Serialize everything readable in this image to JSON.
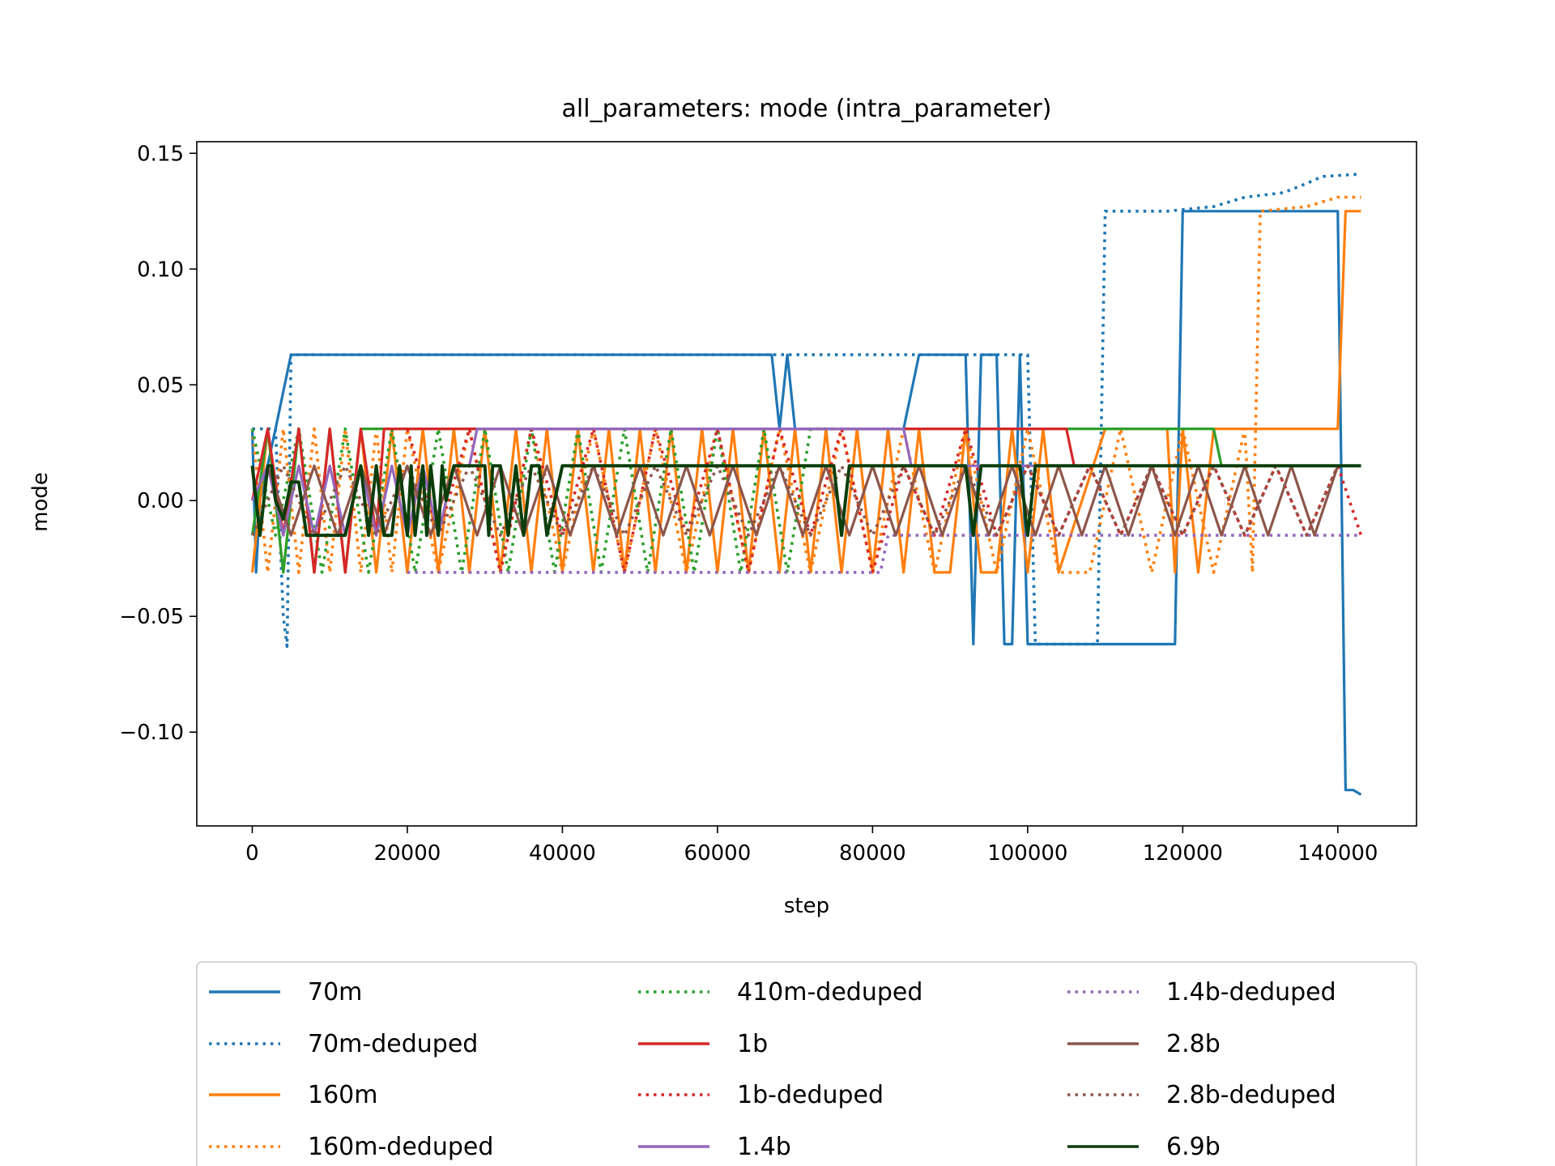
{
  "chart_data": {
    "type": "line",
    "title": "all_parameters: mode (intra_parameter)",
    "xlabel": "step",
    "ylabel": "mode",
    "xlim": [
      -7150,
      150150
    ],
    "ylim": [
      -0.1405,
      0.155
    ],
    "x_ticks": [
      0,
      20000,
      40000,
      60000,
      80000,
      100000,
      120000,
      140000
    ],
    "x_tick_labels": [
      "0",
      "20000",
      "40000",
      "60000",
      "80000",
      "100000",
      "120000",
      "140000"
    ],
    "y_ticks": [
      -0.1,
      -0.05,
      0.0,
      0.05,
      0.1,
      0.15
    ],
    "y_tick_labels": [
      "−0.10",
      "−0.05",
      "0.00",
      "0.05",
      "0.10",
      "0.15"
    ],
    "grid": false,
    "legend": {
      "placement": "below plot, 3 columns",
      "entries": [
        "70m",
        "70m-deduped",
        "160m",
        "160m-deduped",
        "410m-deduped",
        "1b",
        "1b-deduped",
        "1.4b",
        "1.4b-deduped",
        "2.8b",
        "2.8b-deduped",
        "6.9b"
      ]
    },
    "series": [
      {
        "name": "70m",
        "color": "#1f77b4",
        "style": "solid",
        "x": [
          0,
          500,
          1000,
          3000,
          5000,
          30000,
          60000,
          67000,
          68000,
          69000,
          70000,
          71000,
          84000,
          86000,
          92000,
          93000,
          94000,
          96000,
          97000,
          98000,
          99000,
          100000,
          119000,
          120000,
          140000,
          141000,
          142000,
          143000
        ],
        "y": [
          0.031,
          -0.031,
          0.0,
          0.031,
          0.063,
          0.063,
          0.063,
          0.063,
          0.031,
          0.063,
          0.031,
          0.031,
          0.031,
          0.063,
          0.063,
          -0.062,
          0.063,
          0.063,
          -0.062,
          -0.062,
          0.063,
          -0.062,
          -0.062,
          0.125,
          0.125,
          -0.125,
          -0.125,
          -0.127
        ]
      },
      {
        "name": "70m-deduped",
        "color": "#1f77b4",
        "style": "dotted",
        "x": [
          0,
          3000,
          4000,
          4500,
          5000,
          6000,
          30000,
          60000,
          100000,
          101000,
          102000,
          103000,
          108000,
          109000,
          110000,
          118000,
          124000,
          128000,
          133000,
          136000,
          138000,
          143000
        ],
        "y": [
          0.031,
          0.031,
          -0.05,
          -0.063,
          0.063,
          0.063,
          0.063,
          0.063,
          0.063,
          -0.062,
          -0.062,
          -0.062,
          -0.062,
          -0.062,
          0.125,
          0.125,
          0.127,
          0.131,
          0.133,
          0.137,
          0.14,
          0.141
        ]
      },
      {
        "name": "160m",
        "color": "#ff7f0e",
        "style": "solid",
        "x": [
          0,
          2000,
          4000,
          6000,
          8000,
          10000,
          12000,
          14000,
          16000,
          18000,
          20000,
          22000,
          24000,
          26000,
          28000,
          30000,
          32000,
          34000,
          36000,
          38000,
          40000,
          42000,
          44000,
          46000,
          48000,
          50000,
          52000,
          54000,
          56000,
          58000,
          60000,
          62000,
          64000,
          66000,
          68000,
          70000,
          72000,
          74000,
          76000,
          78000,
          80000,
          82000,
          84000,
          86000,
          88000,
          90000,
          92000,
          94000,
          96000,
          98000,
          100000,
          102000,
          104000,
          110000,
          118000,
          119000,
          120000,
          122000,
          124000,
          130000,
          140000,
          141000,
          143000
        ],
        "y": [
          -0.031,
          0.031,
          -0.031,
          0.031,
          -0.031,
          0.031,
          -0.031,
          0.031,
          -0.031,
          0.031,
          -0.031,
          0.031,
          -0.031,
          0.031,
          -0.031,
          0.031,
          -0.031,
          0.031,
          -0.031,
          0.031,
          -0.031,
          0.031,
          -0.031,
          0.031,
          -0.031,
          0.031,
          -0.031,
          0.031,
          -0.031,
          0.031,
          -0.031,
          0.031,
          -0.031,
          0.031,
          -0.031,
          0.031,
          -0.031,
          0.031,
          -0.031,
          0.031,
          -0.031,
          0.031,
          -0.031,
          0.031,
          -0.031,
          -0.031,
          0.031,
          -0.031,
          -0.031,
          0.031,
          -0.031,
          0.031,
          -0.031,
          0.031,
          0.031,
          -0.031,
          0.031,
          -0.031,
          0.031,
          0.031,
          0.031,
          0.125,
          0.125
        ]
      },
      {
        "name": "160m-deduped",
        "color": "#ff7f0e",
        "style": "dotted",
        "x": [
          0,
          2000,
          4000,
          6000,
          8000,
          10000,
          12000,
          14000,
          16000,
          18000,
          20000,
          24000,
          28000,
          32000,
          36000,
          40000,
          44000,
          48000,
          52000,
          56000,
          60000,
          64000,
          68000,
          72000,
          76000,
          80000,
          84000,
          88000,
          92000,
          96000,
          100000,
          104000,
          108000,
          112000,
          116000,
          120000,
          124000,
          128000,
          129000,
          130000,
          136000,
          140000,
          143000
        ],
        "y": [
          0.031,
          -0.031,
          0.031,
          -0.031,
          0.031,
          -0.031,
          0.031,
          -0.031,
          0.031,
          -0.031,
          0.031,
          -0.031,
          0.031,
          -0.031,
          0.031,
          -0.031,
          0.031,
          -0.031,
          0.031,
          -0.031,
          0.031,
          -0.031,
          0.031,
          -0.031,
          0.031,
          -0.031,
          0.031,
          -0.031,
          0.031,
          -0.031,
          0.031,
          -0.031,
          -0.031,
          0.031,
          -0.031,
          0.031,
          -0.031,
          0.031,
          -0.031,
          0.125,
          0.127,
          0.131,
          0.131
        ]
      },
      {
        "name": "410m-deduped",
        "color": "#2ca02c",
        "style": "dotted",
        "x": [
          0,
          3000,
          6000,
          9000,
          12000,
          15000,
          18000,
          21000,
          24000,
          27000,
          30000,
          33000,
          36000,
          39000,
          42000,
          45000,
          48000,
          51000,
          54000,
          57000,
          60000,
          63000,
          66000,
          69000,
          72000,
          75000
        ],
        "y": [
          0.031,
          -0.015,
          0.031,
          -0.031,
          0.031,
          -0.031,
          0.031,
          -0.031,
          0.031,
          -0.031,
          0.031,
          -0.031,
          0.031,
          -0.031,
          0.031,
          -0.031,
          0.031,
          -0.031,
          0.031,
          -0.031,
          0.031,
          -0.031,
          0.031,
          -0.031,
          0.031,
          0.031
        ]
      },
      {
        "name": "410m",
        "color": "#2ca02c",
        "style": "solid",
        "x": [
          0,
          2000,
          4000,
          6000,
          8000,
          10000,
          12000,
          14000,
          16000,
          20000,
          60000,
          100000,
          106000,
          124000,
          125000,
          143000
        ],
        "y": [
          -0.015,
          0.031,
          -0.031,
          0.031,
          -0.031,
          0.031,
          -0.031,
          0.031,
          0.031,
          0.031,
          0.031,
          0.031,
          0.031,
          0.031,
          0.015,
          0.015
        ]
      },
      {
        "name": "1b",
        "color": "#d62728",
        "style": "solid",
        "x": [
          0,
          2000,
          4000,
          6000,
          8000,
          10000,
          12000,
          14000,
          16000,
          17000,
          40000,
          80000,
          105000,
          106000,
          143000
        ],
        "y": [
          0.0,
          0.031,
          -0.015,
          0.031,
          -0.031,
          0.031,
          -0.031,
          0.031,
          -0.015,
          0.031,
          0.031,
          0.031,
          0.031,
          0.015,
          0.015
        ]
      },
      {
        "name": "1b-deduped",
        "color": "#d62728",
        "style": "dotted",
        "x": [
          20000,
          24000,
          28000,
          32000,
          36000,
          40000,
          44000,
          48000,
          52000,
          56000,
          60000,
          64000,
          68000,
          72000,
          76000,
          80000,
          84000,
          88000,
          92000,
          96000,
          100000,
          104000,
          108000,
          112000,
          116000,
          120000,
          124000,
          128000,
          132000,
          136000,
          140000,
          143000
        ],
        "y": [
          0.031,
          -0.015,
          0.031,
          -0.031,
          0.031,
          -0.015,
          0.031,
          -0.031,
          0.031,
          -0.015,
          0.031,
          -0.031,
          0.031,
          -0.015,
          0.031,
          -0.031,
          0.015,
          -0.015,
          0.031,
          -0.015,
          0.015,
          -0.015,
          0.015,
          -0.015,
          0.015,
          -0.015,
          0.015,
          -0.015,
          0.015,
          -0.015,
          0.015,
          -0.015
        ]
      },
      {
        "name": "1.4b",
        "color": "#9467bd",
        "style": "solid",
        "x": [
          0,
          2000,
          4000,
          6000,
          8000,
          10000,
          12000,
          14000,
          16000,
          18000,
          20000,
          22000,
          24000,
          26000,
          28000,
          29000,
          60000,
          84000,
          85000,
          143000
        ],
        "y": [
          0.0,
          0.015,
          -0.015,
          0.015,
          -0.015,
          0.015,
          -0.015,
          0.015,
          -0.015,
          0.015,
          -0.015,
          0.015,
          -0.015,
          0.015,
          0.015,
          0.031,
          0.031,
          0.031,
          0.015,
          0.015
        ]
      },
      {
        "name": "1.4b-deduped",
        "color": "#9467bd",
        "style": "dotted",
        "x": [
          20000,
          30000,
          60000,
          81000,
          82000,
          100000,
          120000,
          143000
        ],
        "y": [
          -0.031,
          -0.031,
          -0.031,
          -0.031,
          -0.015,
          -0.015,
          -0.015,
          -0.015
        ]
      },
      {
        "name": "2.8b",
        "color": "#8c564b",
        "style": "solid",
        "x": [
          2000,
          5000,
          8000,
          11000,
          14000,
          17000,
          20000,
          23000,
          26000,
          29000,
          32000,
          35000,
          38000,
          41000,
          44000,
          47000,
          50000,
          53000,
          56000,
          59000,
          62000,
          65000,
          68000,
          71000,
          74000,
          77000,
          80000,
          83000,
          86000,
          89000,
          92000,
          95000,
          98000,
          101000,
          104000,
          107000,
          110000,
          113000,
          116000,
          119000,
          122000,
          125000,
          128000,
          131000,
          134000,
          137000,
          140000,
          143000
        ],
        "y": [
          0.015,
          -0.015,
          0.015,
          -0.015,
          0.015,
          -0.015,
          0.015,
          -0.015,
          0.015,
          -0.015,
          0.015,
          -0.015,
          0.015,
          -0.015,
          0.015,
          -0.015,
          0.015,
          -0.015,
          0.015,
          -0.015,
          0.015,
          -0.015,
          0.015,
          -0.015,
          0.015,
          -0.015,
          0.015,
          -0.015,
          0.015,
          -0.015,
          0.015,
          -0.015,
          0.015,
          -0.015,
          0.015,
          -0.015,
          0.015,
          -0.015,
          0.015,
          -0.015,
          0.015,
          -0.015,
          0.015,
          -0.015,
          0.015,
          -0.015,
          0.015,
          0.015
        ]
      },
      {
        "name": "2.8b-deduped",
        "color": "#8c564b",
        "style": "dotted",
        "x": [
          0,
          4000,
          8000,
          12000,
          16000,
          20000,
          24000,
          28000,
          32000,
          36000,
          40000,
          44000,
          48000,
          52000,
          56000,
          60000,
          64000,
          68000,
          72000,
          76000,
          80000,
          84000,
          88000,
          92000,
          96000,
          100000,
          104000,
          108000,
          112000,
          116000,
          120000,
          124000,
          128000,
          132000,
          136000,
          140000,
          143000
        ],
        "y": [
          -0.015,
          0.015,
          -0.015,
          0.015,
          -0.015,
          0.015,
          -0.015,
          0.015,
          -0.015,
          0.015,
          -0.015,
          0.015,
          -0.015,
          0.015,
          -0.015,
          0.015,
          -0.015,
          0.015,
          -0.015,
          0.015,
          -0.015,
          0.015,
          -0.015,
          0.015,
          -0.015,
          0.015,
          -0.015,
          0.015,
          -0.015,
          0.015,
          -0.015,
          0.015,
          -0.015,
          0.015,
          -0.015,
          0.015,
          0.015
        ]
      },
      {
        "name": "6.9b",
        "color": "#0b3d0b",
        "style": "solid",
        "x": [
          0,
          1000,
          2000,
          2500,
          3000,
          4000,
          5000,
          6000,
          7000,
          8000,
          10000,
          12000,
          14000,
          15000,
          16000,
          17000,
          18000,
          19000,
          20000,
          20500,
          21000,
          22000,
          22500,
          23000,
          24000,
          24500,
          25000,
          26000,
          27000,
          28000,
          30000,
          30500,
          31000,
          31500,
          32000,
          33000,
          34000,
          35000,
          36000,
          37000,
          38000,
          40000,
          60000,
          75000,
          76000,
          77000,
          92000,
          93000,
          94000,
          99000,
          100000,
          101000,
          143000
        ],
        "y": [
          0.015,
          -0.015,
          0.015,
          0.015,
          0.0,
          -0.008,
          0.008,
          0.008,
          -0.015,
          -0.015,
          -0.015,
          -0.015,
          0.015,
          -0.015,
          0.015,
          -0.015,
          -0.015,
          0.015,
          -0.015,
          0.015,
          -0.015,
          0.015,
          -0.015,
          0.015,
          -0.015,
          0.015,
          0.0,
          0.015,
          0.015,
          0.015,
          0.015,
          -0.015,
          0.015,
          0.015,
          0.015,
          -0.015,
          0.015,
          -0.015,
          0.015,
          0.015,
          -0.015,
          0.015,
          0.015,
          0.015,
          -0.015,
          0.015,
          0.015,
          -0.015,
          0.015,
          0.015,
          -0.015,
          0.015,
          0.015
        ]
      }
    ]
  }
}
